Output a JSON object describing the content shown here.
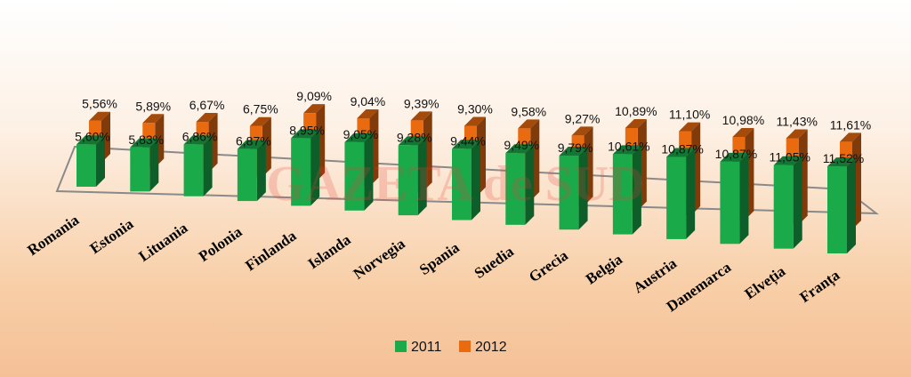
{
  "chart_data": {
    "type": "bar",
    "categories": [
      "Romania",
      "Estonia",
      "Lituania",
      "Polonia",
      "Finlanda",
      "Islanda",
      "Norvegia",
      "Spania",
      "Suedia",
      "Grecia",
      "Belgia",
      "Austria",
      "Danemarca",
      "Elveția",
      "Franța"
    ],
    "series": [
      {
        "name": "2011",
        "color": "#1aaa4a",
        "values": [
          5.6,
          5.83,
          6.86,
          6.87,
          8.95,
          9.05,
          9.28,
          9.44,
          9.49,
          9.79,
          10.61,
          10.87,
          10.87,
          11.05,
          11.52
        ],
        "labels": [
          "5,60%",
          "5,83%",
          "6,86%",
          "6,87%",
          "8,95%",
          "9,05%",
          "9,28%",
          "9,44%",
          "9,49%",
          "9,79%",
          "10,61%",
          "10,87%",
          "10,87%",
          "11,05%",
          "11,52%"
        ]
      },
      {
        "name": "2012",
        "color": "#ea6a10",
        "values": [
          5.56,
          5.89,
          6.67,
          6.75,
          9.09,
          9.04,
          9.39,
          9.3,
          9.58,
          9.27,
          10.89,
          11.1,
          10.98,
          11.43,
          11.61
        ],
        "labels": [
          "5,56%",
          "5,89%",
          "6,67%",
          "6,75%",
          "9,09%",
          "9,04%",
          "9,39%",
          "9,30%",
          "9,58%",
          "9,27%",
          "10,89%",
          "11,10%",
          "10,98%",
          "11,43%",
          "11,61%"
        ]
      }
    ],
    "legend_position": "bottom",
    "grid": false
  },
  "watermark": "GAZETA de SUD"
}
